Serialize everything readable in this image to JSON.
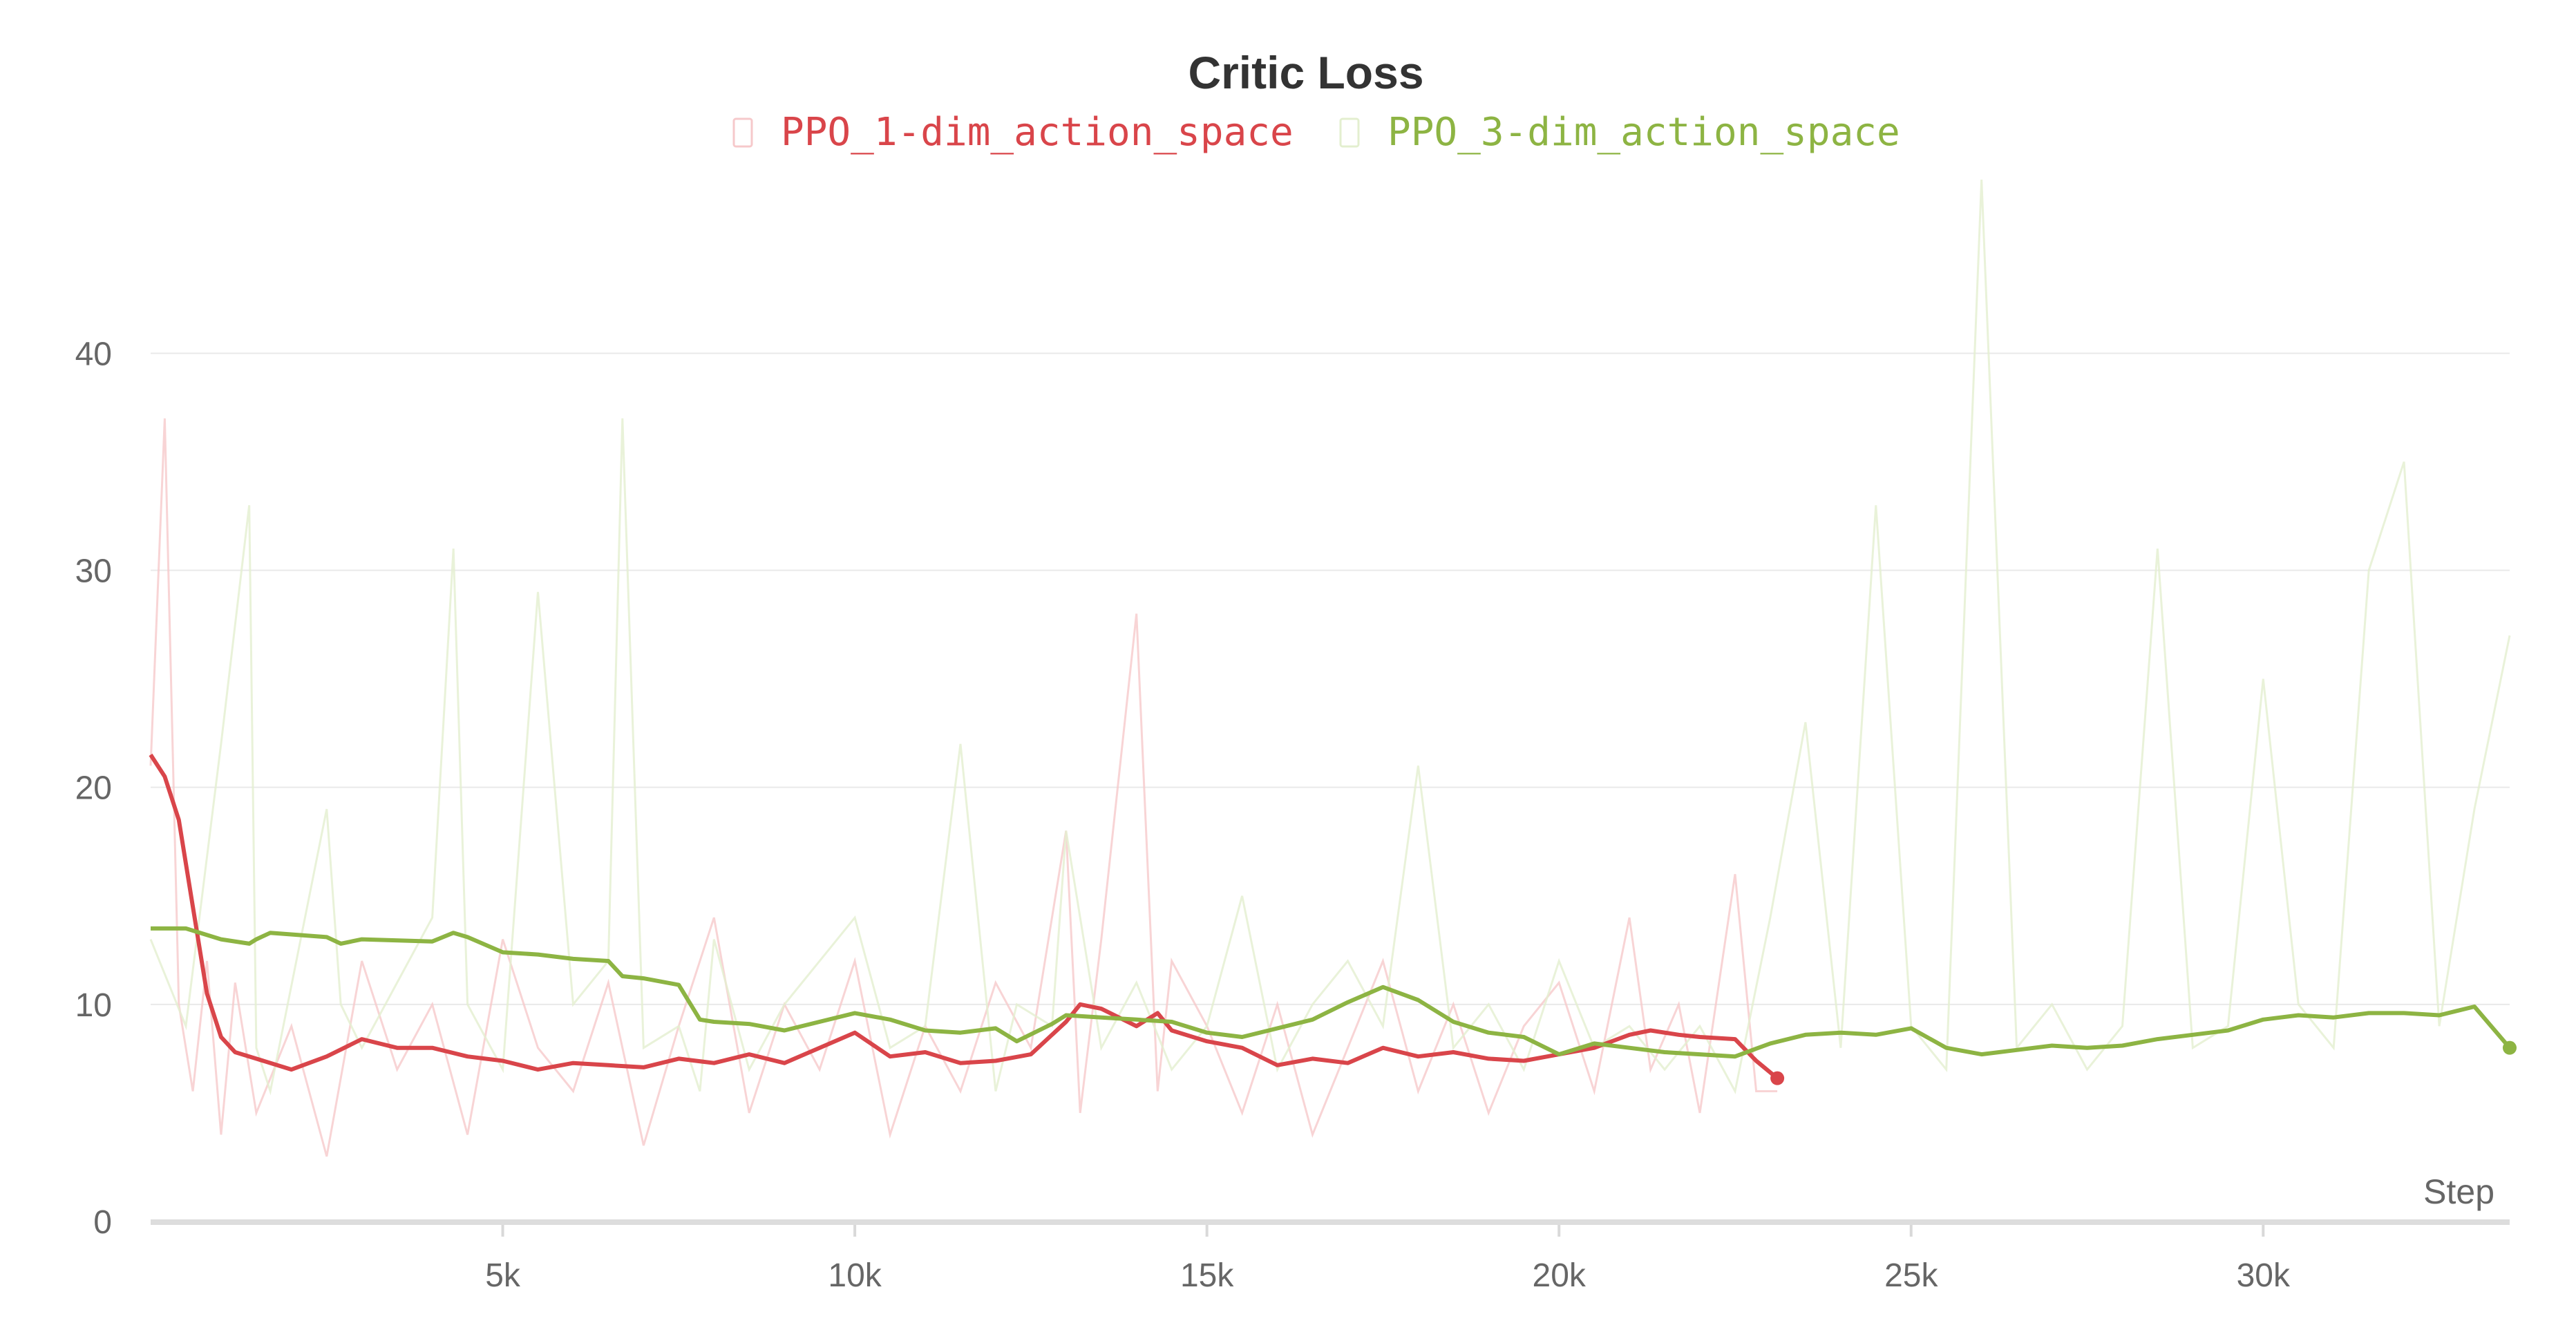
{
  "chart_data": {
    "type": "line",
    "title": "Critic Loss",
    "xlabel": "Step",
    "ylabel": "",
    "xlim": [
      0,
      33500
    ],
    "ylim": [
      0,
      48
    ],
    "x_ticks": [
      5000,
      10000,
      15000,
      20000,
      25000,
      30000
    ],
    "x_tick_labels": [
      "5k",
      "10k",
      "15k",
      "20k",
      "25k",
      "30k"
    ],
    "y_ticks": [
      0,
      10,
      20,
      30,
      40
    ],
    "y_tick_labels": [
      "0",
      "10",
      "20",
      "30",
      "40"
    ],
    "grid": true,
    "legend_position": "top-center",
    "series": [
      {
        "name": "PPO_1-dim_action_space",
        "color": "#d9454a",
        "raw_color": "#f6c9cb",
        "x": [
          0,
          200,
          400,
          600,
          800,
          1000,
          1200,
          1500,
          2000,
          2500,
          3000,
          3500,
          4000,
          4500,
          5000,
          5500,
          6000,
          6500,
          7000,
          7500,
          8000,
          8500,
          9000,
          9500,
          10000,
          10500,
          11000,
          11500,
          12000,
          12500,
          13000,
          13200,
          13500,
          14000,
          14300,
          14500,
          15000,
          15500,
          16000,
          16500,
          17000,
          17500,
          18000,
          18500,
          19000,
          19500,
          20000,
          20500,
          21000,
          21300,
          21700,
          22000,
          22500,
          22800,
          23100
        ],
        "values": [
          21.5,
          20.5,
          18.5,
          14.5,
          10.5,
          8.5,
          7.8,
          7.5,
          7.0,
          7.6,
          8.4,
          8.0,
          8.0,
          7.6,
          7.4,
          7.0,
          7.3,
          7.2,
          7.1,
          7.5,
          7.3,
          7.7,
          7.3,
          8.0,
          8.7,
          7.6,
          7.8,
          7.3,
          7.4,
          7.7,
          9.2,
          10.0,
          9.8,
          9.0,
          9.6,
          8.8,
          8.3,
          8.0,
          7.2,
          7.5,
          7.3,
          8.0,
          7.6,
          7.8,
          7.5,
          7.4,
          7.7,
          8.0,
          8.6,
          8.8,
          8.6,
          8.5,
          8.4,
          7.4,
          6.6
        ],
        "raw": [
          21.0,
          37.0,
          10.0,
          6.0,
          12.0,
          4.0,
          11.0,
          5.0,
          9.0,
          3.0,
          12.0,
          7.0,
          10.0,
          4.0,
          13.0,
          8.0,
          6.0,
          11.0,
          3.5,
          9.0,
          14.0,
          5.0,
          10.0,
          7.0,
          12.0,
          4.0,
          9.0,
          6.0,
          11.0,
          8.0,
          18.0,
          5.0,
          13.0,
          28.0,
          6.0,
          12.0,
          9.0,
          5.0,
          10.0,
          4.0,
          8.0,
          12.0,
          6.0,
          10.0,
          5.0,
          9.0,
          11.0,
          6.0,
          14.0,
          7.0,
          10.0,
          5.0,
          16.0,
          6.0,
          6.0
        ]
      },
      {
        "name": "PPO_3-dim_action_space",
        "color": "#8db443",
        "raw_color": "#e3efcf",
        "x": [
          0,
          500,
          1000,
          1400,
          1500,
          1700,
          2500,
          2700,
          3000,
          4000,
          4300,
          4500,
          5000,
          5500,
          6000,
          6500,
          6700,
          7000,
          7500,
          7800,
          8000,
          8500,
          9000,
          10000,
          10500,
          11000,
          11500,
          12000,
          12300,
          12800,
          13000,
          13500,
          14000,
          14500,
          15000,
          15500,
          16000,
          16500,
          17000,
          17500,
          18000,
          18500,
          19000,
          19500,
          20000,
          20500,
          21000,
          21500,
          22000,
          22500,
          23000,
          23500,
          24000,
          24500,
          25000,
          25500,
          26000,
          26500,
          27000,
          27500,
          28000,
          28500,
          29000,
          29500,
          30000,
          30500,
          31000,
          31500,
          32000,
          32500,
          33000,
          33500
        ],
        "values": [
          13.5,
          13.5,
          13.0,
          12.8,
          13.0,
          13.3,
          13.1,
          12.8,
          13.0,
          12.9,
          13.3,
          13.1,
          12.4,
          12.3,
          12.1,
          12.0,
          11.3,
          11.2,
          10.9,
          9.3,
          9.2,
          9.1,
          8.8,
          9.6,
          9.3,
          8.8,
          8.7,
          8.9,
          8.3,
          9.1,
          9.5,
          9.4,
          9.3,
          9.2,
          8.7,
          8.5,
          8.9,
          9.3,
          10.1,
          10.8,
          10.2,
          9.2,
          8.7,
          8.5,
          7.7,
          8.2,
          8.0,
          7.8,
          7.7,
          7.6,
          8.2,
          8.6,
          8.7,
          8.6,
          8.9,
          8.0,
          7.7,
          7.9,
          8.1,
          8.0,
          8.1,
          8.4,
          8.6,
          8.8,
          9.3,
          9.5,
          9.4,
          9.6,
          9.6,
          9.5,
          9.9,
          8.0
        ],
        "raw": [
          13.0,
          9.0,
          22.0,
          33.0,
          8.0,
          6.0,
          19.0,
          10.0,
          8.0,
          14.0,
          31.0,
          10.0,
          7.0,
          29.0,
          10.0,
          12.0,
          37.0,
          8.0,
          9.0,
          6.0,
          13.0,
          7.0,
          10.0,
          14.0,
          8.0,
          9.0,
          22.0,
          6.0,
          10.0,
          9.0,
          18.0,
          8.0,
          11.0,
          7.0,
          9.0,
          15.0,
          7.0,
          10.0,
          12.0,
          9.0,
          21.0,
          8.0,
          10.0,
          7.0,
          12.0,
          8.0,
          9.0,
          7.0,
          9.0,
          6.0,
          14.0,
          23.0,
          8.0,
          33.0,
          9.0,
          7.0,
          48.0,
          8.0,
          10.0,
          7.0,
          9.0,
          31.0,
          8.0,
          9.0,
          25.0,
          10.0,
          8.0,
          30.0,
          35.0,
          9.0,
          19.0,
          27.0
        ]
      }
    ]
  }
}
